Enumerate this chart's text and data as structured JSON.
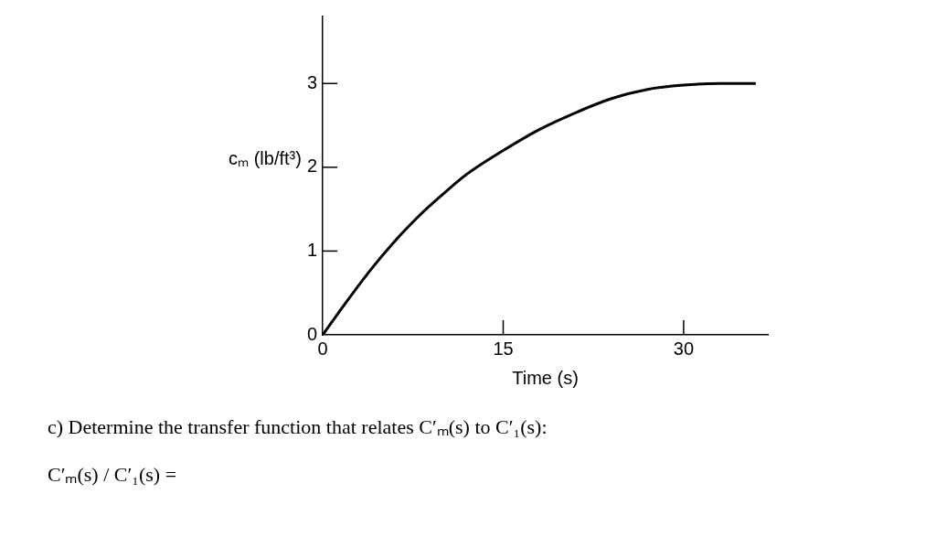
{
  "chart_data": {
    "type": "line",
    "xlabel": "Time (s)",
    "ylabel": "cₘ (lb/ft³)",
    "x": [
      0,
      2,
      4,
      6,
      8,
      10,
      12,
      15,
      18,
      21,
      24,
      27,
      30,
      33,
      36
    ],
    "series": [
      {
        "color": "#000000",
        "values": [
          0,
          0.4,
          0.78,
          1.12,
          1.42,
          1.68,
          1.92,
          2.2,
          2.45,
          2.65,
          2.82,
          2.93,
          2.98,
          3.0,
          3.0
        ]
      }
    ],
    "xlim": [
      0,
      37
    ],
    "xticks": [
      0,
      15,
      30
    ],
    "ylim": [
      0,
      3.8
    ],
    "yticks": [
      0,
      1,
      2,
      3
    ],
    "grid": false,
    "legend": false,
    "marker": "none",
    "line_style": "solid",
    "annotations": [
      "c) Determine the transfer function that relates C′ₘ(s) to C′₁(s):",
      "C′ₘ(s) / C′₁(s) ="
    ]
  }
}
